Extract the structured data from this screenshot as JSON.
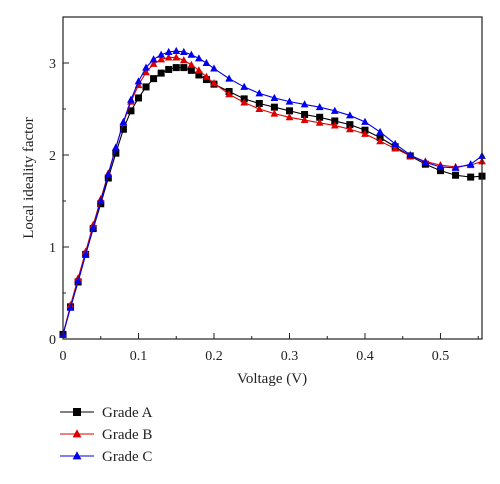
{
  "chart_data": {
    "type": "line",
    "xlabel": "Voltage (V)",
    "ylabel": "Local ideality factor",
    "xlim": [
      0,
      0.555
    ],
    "ylim": [
      0,
      3.5
    ],
    "x_ticks": [
      0,
      0.1,
      0.2,
      0.3,
      0.4,
      0.5
    ],
    "y_ticks": [
      0,
      1,
      2,
      3
    ],
    "x_tick_labels": [
      "0",
      "0.1",
      "0.2",
      "0.3",
      "0.4",
      "0.5"
    ],
    "y_tick_labels": [
      "0",
      "1",
      "2",
      "3"
    ],
    "grid": false,
    "legend_position": "bottom-left, below plot",
    "series": [
      {
        "name": "Grade A",
        "color": "#000000",
        "marker": "square",
        "points": [
          [
            0,
            0.05
          ],
          [
            0.01,
            0.35
          ],
          [
            0.02,
            0.62
          ],
          [
            0.03,
            0.92
          ],
          [
            0.04,
            1.2
          ],
          [
            0.05,
            1.47
          ],
          [
            0.06,
            1.75
          ],
          [
            0.07,
            2.02
          ],
          [
            0.08,
            2.28
          ],
          [
            0.09,
            2.48
          ],
          [
            0.1,
            2.62
          ],
          [
            0.11,
            2.74
          ],
          [
            0.12,
            2.83
          ],
          [
            0.13,
            2.89
          ],
          [
            0.14,
            2.93
          ],
          [
            0.15,
            2.95
          ],
          [
            0.16,
            2.95
          ],
          [
            0.17,
            2.92
          ],
          [
            0.18,
            2.87
          ],
          [
            0.19,
            2.82
          ],
          [
            0.2,
            2.77
          ],
          [
            0.22,
            2.69
          ],
          [
            0.24,
            2.61
          ],
          [
            0.26,
            2.56
          ],
          [
            0.28,
            2.52
          ],
          [
            0.3,
            2.48
          ],
          [
            0.32,
            2.44
          ],
          [
            0.34,
            2.41
          ],
          [
            0.36,
            2.37
          ],
          [
            0.38,
            2.33
          ],
          [
            0.4,
            2.27
          ],
          [
            0.42,
            2.19
          ],
          [
            0.44,
            2.09
          ],
          [
            0.46,
            1.99
          ],
          [
            0.48,
            1.9
          ],
          [
            0.5,
            1.83
          ],
          [
            0.52,
            1.78
          ],
          [
            0.54,
            1.76
          ],
          [
            0.555,
            1.77
          ]
        ]
      },
      {
        "name": "Grade B",
        "color": "#dd0000",
        "marker": "triangle",
        "points": [
          [
            0,
            0.05
          ],
          [
            0.01,
            0.37
          ],
          [
            0.02,
            0.66
          ],
          [
            0.03,
            0.95
          ],
          [
            0.04,
            1.24
          ],
          [
            0.05,
            1.52
          ],
          [
            0.06,
            1.8
          ],
          [
            0.07,
            2.08
          ],
          [
            0.08,
            2.35
          ],
          [
            0.09,
            2.58
          ],
          [
            0.1,
            2.76
          ],
          [
            0.11,
            2.9
          ],
          [
            0.12,
            2.99
          ],
          [
            0.13,
            3.04
          ],
          [
            0.14,
            3.06
          ],
          [
            0.15,
            3.06
          ],
          [
            0.16,
            3.03
          ],
          [
            0.17,
            2.98
          ],
          [
            0.18,
            2.92
          ],
          [
            0.19,
            2.85
          ],
          [
            0.2,
            2.78
          ],
          [
            0.22,
            2.66
          ],
          [
            0.24,
            2.57
          ],
          [
            0.26,
            2.5
          ],
          [
            0.28,
            2.45
          ],
          [
            0.3,
            2.41
          ],
          [
            0.32,
            2.38
          ],
          [
            0.34,
            2.35
          ],
          [
            0.36,
            2.32
          ],
          [
            0.38,
            2.28
          ],
          [
            0.4,
            2.23
          ],
          [
            0.42,
            2.15
          ],
          [
            0.44,
            2.07
          ],
          [
            0.46,
            1.99
          ],
          [
            0.48,
            1.93
          ],
          [
            0.5,
            1.89
          ],
          [
            0.52,
            1.87
          ],
          [
            0.54,
            1.89
          ],
          [
            0.555,
            1.93
          ]
        ]
      },
      {
        "name": "Grade C",
        "color": "#0000ee",
        "marker": "triangle",
        "points": [
          [
            0,
            0.05
          ],
          [
            0.01,
            0.34
          ],
          [
            0.02,
            0.63
          ],
          [
            0.03,
            0.92
          ],
          [
            0.04,
            1.21
          ],
          [
            0.05,
            1.5
          ],
          [
            0.06,
            1.79
          ],
          [
            0.07,
            2.08
          ],
          [
            0.08,
            2.36
          ],
          [
            0.09,
            2.6
          ],
          [
            0.1,
            2.8
          ],
          [
            0.11,
            2.95
          ],
          [
            0.12,
            3.04
          ],
          [
            0.13,
            3.09
          ],
          [
            0.14,
            3.12
          ],
          [
            0.15,
            3.13
          ],
          [
            0.16,
            3.12
          ],
          [
            0.17,
            3.09
          ],
          [
            0.18,
            3.05
          ],
          [
            0.19,
            3.0
          ],
          [
            0.2,
            2.94
          ],
          [
            0.22,
            2.83
          ],
          [
            0.24,
            2.74
          ],
          [
            0.26,
            2.67
          ],
          [
            0.28,
            2.62
          ],
          [
            0.3,
            2.58
          ],
          [
            0.32,
            2.55
          ],
          [
            0.34,
            2.52
          ],
          [
            0.36,
            2.48
          ],
          [
            0.38,
            2.43
          ],
          [
            0.4,
            2.36
          ],
          [
            0.42,
            2.25
          ],
          [
            0.44,
            2.12
          ],
          [
            0.46,
            2.0
          ],
          [
            0.48,
            1.92
          ],
          [
            0.5,
            1.87
          ],
          [
            0.52,
            1.86
          ],
          [
            0.54,
            1.9
          ],
          [
            0.555,
            1.99
          ]
        ]
      }
    ]
  }
}
